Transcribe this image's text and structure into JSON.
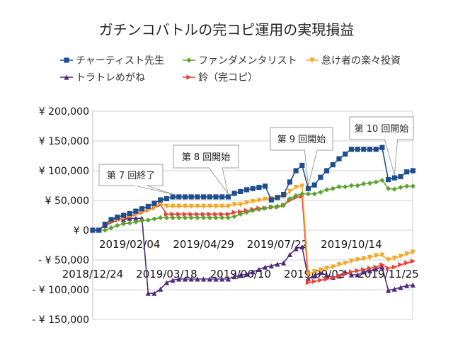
{
  "chart_data": {
    "type": "line",
    "title": "ガチンコバトルの完コピ運用の実現損益",
    "xlabel": "",
    "ylabel": "",
    "ylim": [
      -150000,
      200000
    ],
    "yticks": [
      200000,
      150000,
      100000,
      50000,
      0,
      -50000,
      -100000,
      -150000
    ],
    "ytick_labels": [
      "¥ 200,000",
      "¥ 150,000",
      "¥ 100,000",
      "¥ 50,000",
      "¥ 0",
      "- ¥ 50,000",
      "- ¥ 100,000",
      "- ¥ 150,000"
    ],
    "negative_label_color": "#e00000",
    "x_start": "2018/12/24",
    "x_interval": "weekly",
    "xtick_labels": [
      "2018/12/24",
      "2019/02/04",
      "2019/03/18",
      "2019/04/29",
      "2019/06/10",
      "2019/07/22",
      "2019/09/02",
      "2019/10/14",
      "2019/11/25"
    ],
    "grid": "horizontal",
    "legend_placement": "top",
    "series": [
      {
        "name": "チャーティスト先生",
        "color": "#1f4e8c",
        "marker": "square",
        "values": [
          0,
          0,
          10000,
          18000,
          22000,
          25000,
          28000,
          32000,
          36000,
          40000,
          45000,
          51000,
          53000,
          56000,
          56000,
          56000,
          56000,
          56000,
          56000,
          56000,
          56000,
          56000,
          56000,
          62000,
          65000,
          68000,
          70000,
          72000,
          74000,
          51000,
          55000,
          60000,
          81000,
          100000,
          109000,
          70000,
          76000,
          89000,
          100000,
          110000,
          120000,
          128000,
          136000,
          136000,
          136000,
          136000,
          136000,
          139000,
          85000,
          88000,
          90000,
          98000,
          100000
        ]
      },
      {
        "name": "ファンダメンタリスト",
        "color": "#5ea32e",
        "marker": "diamond",
        "values": [
          0,
          0,
          0,
          4000,
          8000,
          11000,
          12000,
          14000,
          16000,
          17000,
          19000,
          21000,
          21000,
          21000,
          21000,
          21000,
          21000,
          21000,
          21000,
          21000,
          21000,
          21000,
          21000,
          23000,
          27000,
          30000,
          33000,
          35000,
          37000,
          39000,
          40000,
          42000,
          53000,
          58000,
          61000,
          61000,
          61000,
          64000,
          68000,
          70000,
          73000,
          73000,
          75000,
          75000,
          78000,
          79000,
          81000,
          84000,
          70000,
          69000,
          72000,
          74000,
          74000
        ]
      },
      {
        "name": "怠け者の楽々投資",
        "color": "#f5a623",
        "marker": "triangle-down",
        "values": [
          0,
          0,
          10000,
          15000,
          18000,
          21000,
          24000,
          27000,
          30000,
          34000,
          38000,
          45000,
          40000,
          40000,
          40000,
          40000,
          40000,
          40000,
          40000,
          40000,
          40000,
          40000,
          40000,
          43000,
          43000,
          46000,
          48000,
          50000,
          52000,
          53000,
          55000,
          56000,
          65000,
          72000,
          74000,
          -74000,
          -70000,
          -67000,
          -64000,
          -62000,
          -58000,
          -56000,
          -52000,
          -50000,
          -48000,
          -46000,
          -43000,
          -42000,
          -50000,
          -47000,
          -44000,
          -40000,
          -37000
        ]
      },
      {
        "name": "トラトレめがね",
        "color": "#4b2a7b",
        "marker": "triangle-up",
        "values": [
          0,
          0,
          8000,
          18000,
          20000,
          18000,
          20000,
          20000,
          20000,
          -106000,
          -106000,
          -99000,
          -88000,
          -84000,
          -82000,
          -82000,
          -82000,
          -82000,
          -82000,
          -82000,
          -82000,
          -82000,
          -82000,
          -78000,
          -76000,
          -74000,
          -70000,
          -66000,
          -62000,
          -60000,
          -57000,
          -55000,
          -41000,
          -31000,
          -28000,
          -81000,
          -77000,
          -71000,
          -76000,
          -79000,
          -77000,
          -70000,
          -75000,
          -75000,
          -70000,
          -68000,
          -65000,
          -62000,
          -101000,
          -99000,
          -96000,
          -93000,
          -92000
        ]
      },
      {
        "name": "鈴（完コピ）",
        "color": "#e8413a",
        "marker": "triangle-right",
        "values": [
          0,
          0,
          8000,
          13000,
          17000,
          20000,
          23000,
          27000,
          30000,
          34000,
          38000,
          43000,
          27000,
          27000,
          27000,
          27000,
          27000,
          27000,
          27000,
          27000,
          27000,
          27000,
          27000,
          30000,
          31000,
          33000,
          35000,
          37000,
          37000,
          39000,
          39000,
          42000,
          50000,
          55000,
          57000,
          -88000,
          -86000,
          -84000,
          -82000,
          -80000,
          -77000,
          -74000,
          -70000,
          -68000,
          -66000,
          -64000,
          -62000,
          -58000,
          -64000,
          -62000,
          -58000,
          -55000,
          -52000
        ]
      }
    ],
    "annotations": [
      {
        "text": "第 7 回終了",
        "target_series": 0,
        "target_index": 13
      },
      {
        "text": "第 8 回開始",
        "target_series": 0,
        "target_index": 22
      },
      {
        "text": "第 9 回開始",
        "target_series": 0,
        "target_index": 35
      },
      {
        "text": "第 10 回開始",
        "target_series": 0,
        "target_index": 49
      }
    ]
  }
}
